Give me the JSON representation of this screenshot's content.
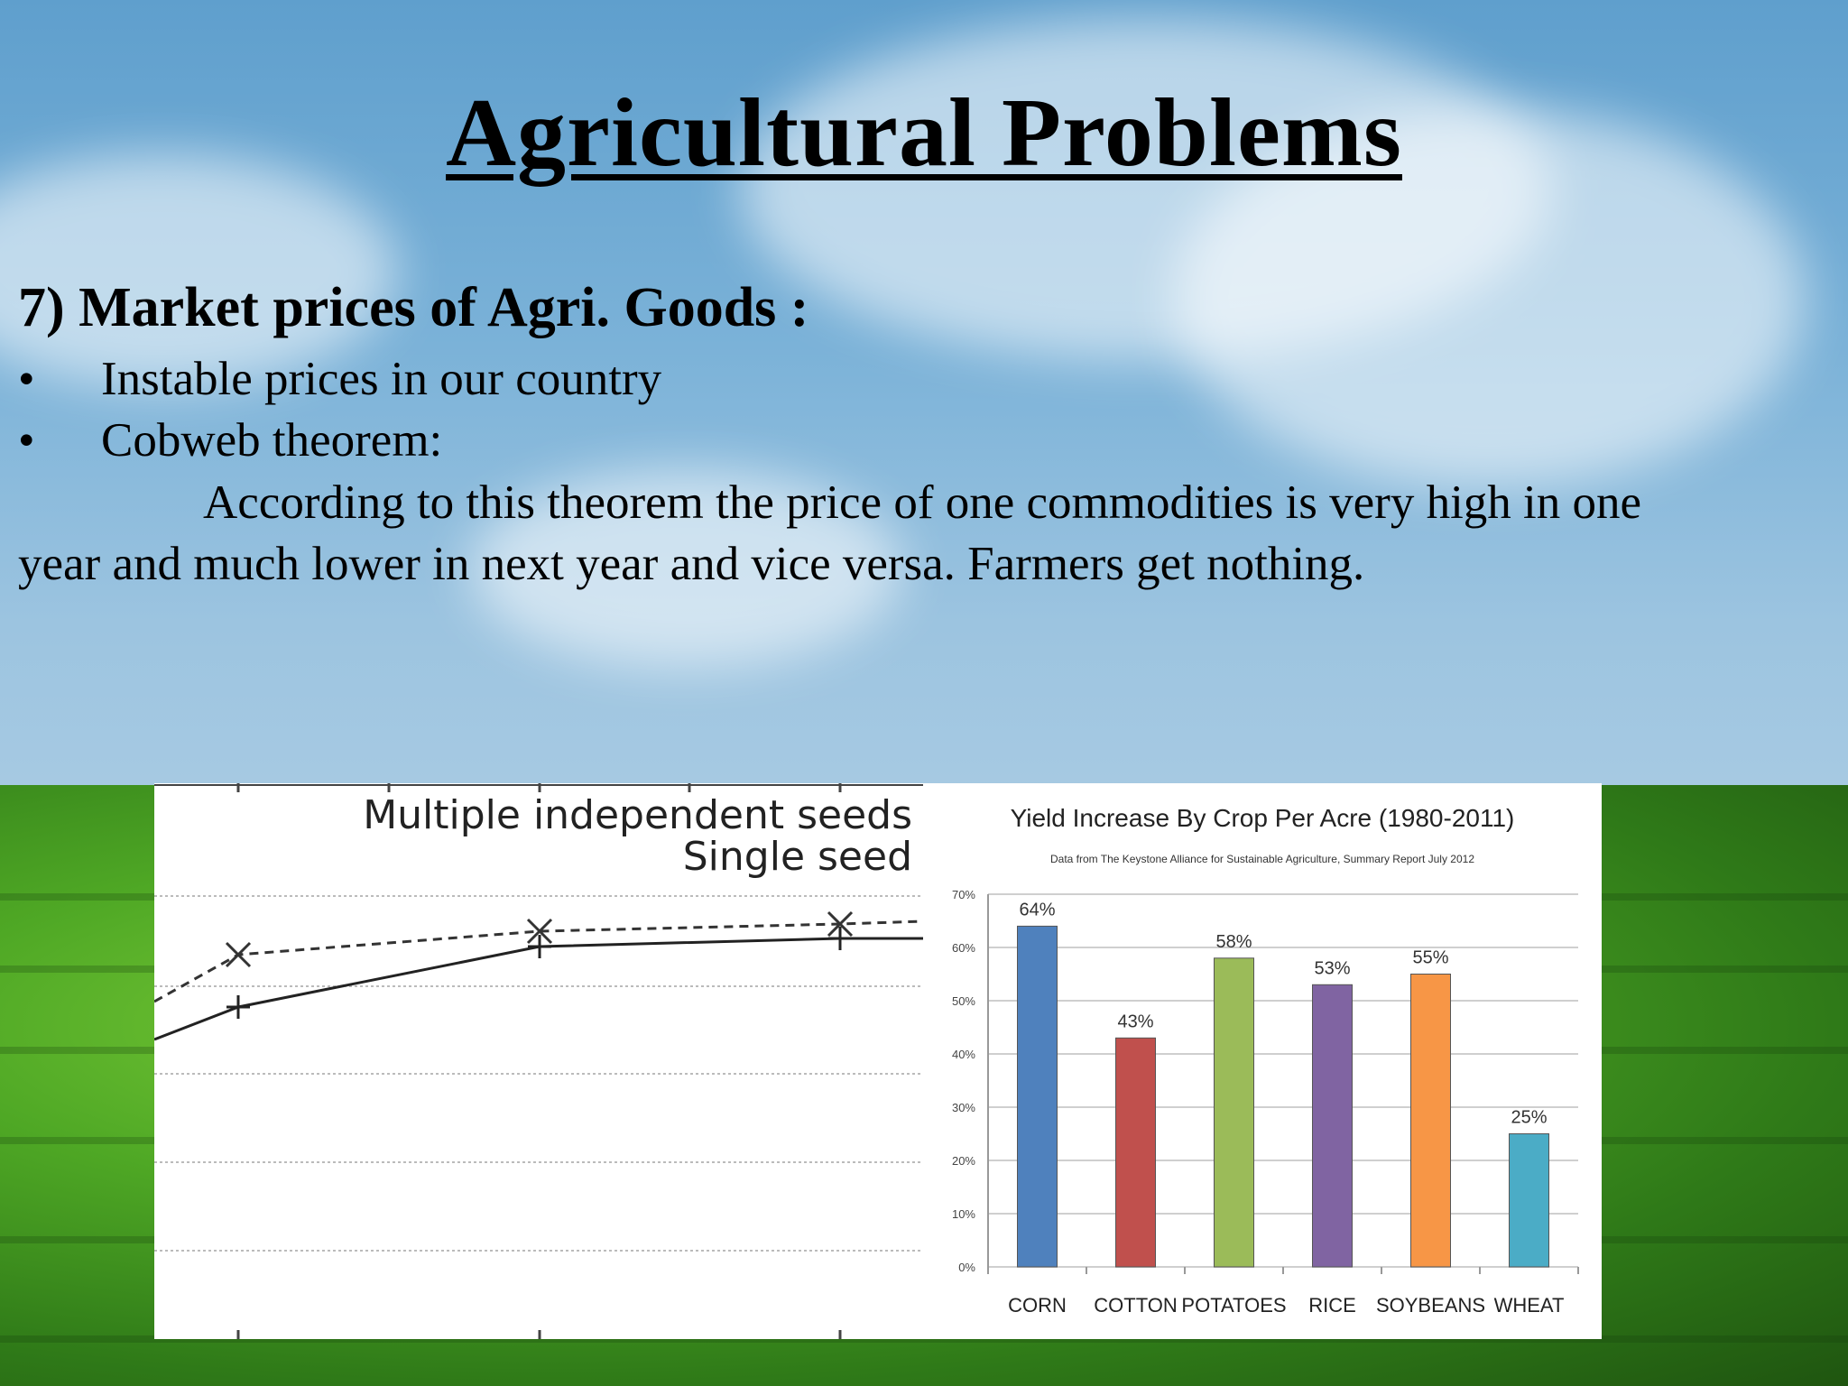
{
  "slide": {
    "title": "Agricultural Problems",
    "heading": "7) Market prices of Agri. Goods :",
    "bullets": [
      {
        "symbol": "•",
        "text": "Instable prices in our country"
      },
      {
        "symbol": "•",
        "text": "Cobweb theorem:"
      }
    ],
    "paragraph_line1": "According to this theorem the price of one commodities is very high in one",
    "paragraph_line2": "year and much lower in next year and vice versa. Farmers get nothing."
  },
  "left_figure": {
    "legend_1": "Multiple independent seeds",
    "legend_2": "Single seed"
  },
  "chart_data": {
    "type": "bar",
    "title": "Yield Increase By Crop Per Acre (1980-2011)",
    "subtitle": "Data from The Keystone Alliance for Sustainable Agriculture, Summary Report July 2012",
    "categories": [
      "CORN",
      "COTTON",
      "POTATOES",
      "RICE",
      "SOYBEANS",
      "WHEAT"
    ],
    "values": [
      64,
      43,
      58,
      53,
      55,
      25
    ],
    "data_labels": [
      "64%",
      "43%",
      "58%",
      "53%",
      "55%",
      "25%"
    ],
    "colors": [
      "#4f81bd",
      "#c0504d",
      "#9bbb59",
      "#8064a2",
      "#f79646",
      "#4bacc6"
    ],
    "yticks": [
      "0%",
      "10%",
      "20%",
      "30%",
      "40%",
      "50%",
      "60%",
      "70%"
    ],
    "ylim": [
      0,
      70
    ],
    "grid": true
  }
}
